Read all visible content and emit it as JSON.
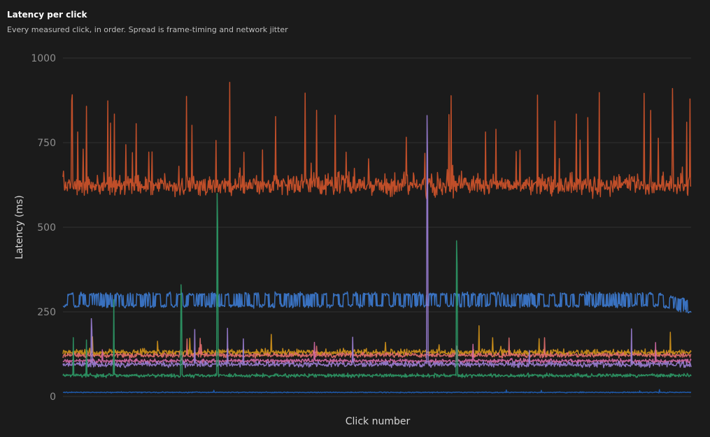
{
  "header": {
    "title": "Latency per click",
    "subtitle": "Every measured click, in order. Spread is frame-timing and network jitter"
  },
  "chart_data": {
    "type": "line",
    "xlabel": "Click number",
    "ylabel": "Latency (ms)",
    "ylim": [
      0,
      1000
    ],
    "yticks": [
      0,
      250,
      500,
      750,
      1000
    ],
    "grid": true,
    "n_points": 1150,
    "series": [
      {
        "color": "#c8512a",
        "base": 625,
        "jitter": 45,
        "spike_prob": 0.05,
        "spike_max": 290,
        "trend": []
      },
      {
        "color": "#3d7bd1",
        "base": 268,
        "jitter": 8,
        "square": {
          "low": 268,
          "high": 302,
          "period": 18
        },
        "spike_prob": 0,
        "spike_max": 0,
        "trend": [
          [
            0.95,
            1.0,
            -20
          ]
        ]
      },
      {
        "color": "#d3931a",
        "base": 130,
        "jitter": 14,
        "spike_prob": 0.01,
        "spike_max": 80,
        "trend": []
      },
      {
        "color": "#e36f6f",
        "base": 122,
        "jitter": 10,
        "spike_prob": 0.01,
        "spike_max": 60,
        "trend": []
      },
      {
        "color": "#2d9a67",
        "base": 62,
        "jitter": 8,
        "spike_prob": 0.006,
        "spike_max": 250,
        "trend": []
      },
      {
        "color": "#9c7fd6",
        "base": 95,
        "jitter": 12,
        "spike_prob": 0.004,
        "spike_max": 120,
        "trend": []
      },
      {
        "color": "#d46aa8",
        "base": 105,
        "jitter": 9,
        "spike_prob": 0.005,
        "spike_max": 60,
        "trend": []
      },
      {
        "color": "#1f5fb8",
        "base": 12,
        "jitter": 2,
        "spike_prob": 0.004,
        "spike_max": 10,
        "trend": []
      }
    ],
    "highlight_spikes": [
      {
        "series": 4,
        "x_frac": 0.245,
        "value": 600
      },
      {
        "series": 4,
        "x_frac": 0.188,
        "value": 330
      },
      {
        "series": 4,
        "x_frac": 0.627,
        "value": 460
      },
      {
        "series": 5,
        "x_frac": 0.58,
        "value": 830
      },
      {
        "series": 5,
        "x_frac": 0.045,
        "value": 230
      },
      {
        "series": 0,
        "x_frac": 0.97,
        "value": 910
      }
    ]
  }
}
